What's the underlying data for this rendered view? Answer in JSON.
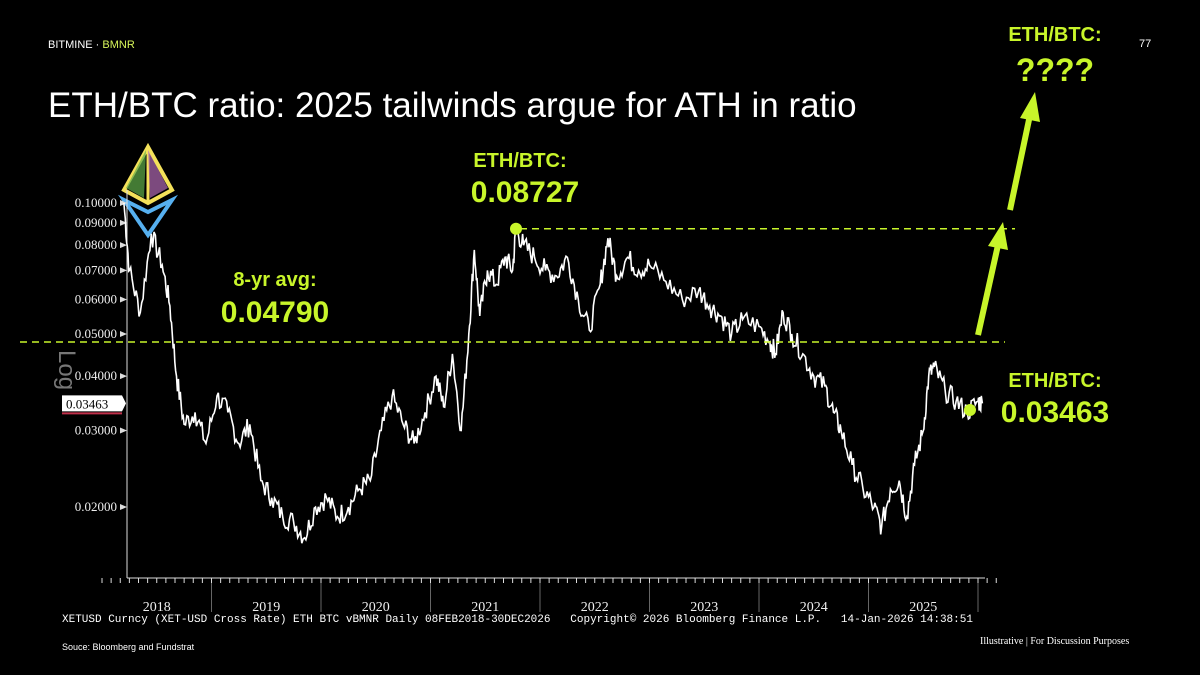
{
  "brand": {
    "name": "BITMINE",
    "ticker": "BMNR"
  },
  "page_number": "77",
  "title": "ETH/BTC ratio: 2025 tailwinds argue for ATH in ratio",
  "annotations": {
    "peak_label": "ETH/BTC:",
    "peak_value": "0.08727",
    "avg_label": "8-yr avg:",
    "avg_value": "0.04790",
    "current_label": "ETH/BTC:",
    "current_value": "0.03463",
    "future_label": "ETH/BTC:",
    "future_value": "????"
  },
  "axis_scale_label": "Log",
  "footer": {
    "bloomberg": "XETUSD Curncy (XET-USD Cross Rate) ETH BTC vBMNR Daily 08FEB2018-30DEC2026   Copyright© 2026 Bloomberg Finance L.P.   14-Jan-2026 14:38:51",
    "source": "Souce: Bloomberg and Fundstrat",
    "disclaimer": "Illustrative  |  For Discussion Purposes"
  },
  "colors": {
    "accent": "#c8f52a",
    "line": "#ffffff",
    "bg": "#000000"
  },
  "chart_data": {
    "type": "line",
    "yscale": "log",
    "ylim": [
      0.015,
      0.105
    ],
    "xlim": [
      2018.0,
      2026.2
    ],
    "yticks": [
      0.1,
      0.09,
      0.08,
      0.07,
      0.06,
      0.05,
      0.04,
      0.03,
      0.02
    ],
    "ytick_labels": [
      "0.10000",
      "0.09000",
      "0.08000",
      "0.07000",
      "0.06000",
      "0.05000",
      "0.04000",
      "0.03000",
      "0.02000"
    ],
    "xtick_labels": [
      "2018",
      "2019",
      "2020",
      "2021",
      "2022",
      "2023",
      "2024",
      "2025"
    ],
    "last_value": 0.03463,
    "last_value_label": "0.03463",
    "avg": 0.0479,
    "peak": 0.08727,
    "series": [
      {
        "name": "ETH/BTC",
        "x": [
          2018.2,
          2018.25,
          2018.35,
          2018.45,
          2018.55,
          2018.62,
          2018.68,
          2018.75,
          2018.85,
          2018.95,
          2019.05,
          2019.15,
          2019.25,
          2019.35,
          2019.45,
          2019.55,
          2019.65,
          2019.75,
          2019.85,
          2019.95,
          2020.05,
          2020.15,
          2020.25,
          2020.35,
          2020.45,
          2020.55,
          2020.65,
          2020.75,
          2020.85,
          2020.95,
          2021.05,
          2021.12,
          2021.2,
          2021.28,
          2021.35,
          2021.4,
          2021.45,
          2021.52,
          2021.6,
          2021.68,
          2021.75,
          2021.78,
          2021.85,
          2021.95,
          2022.05,
          2022.15,
          2022.25,
          2022.35,
          2022.45,
          2022.55,
          2022.62,
          2022.7,
          2022.8,
          2022.9,
          2023.0,
          2023.15,
          2023.3,
          2023.45,
          2023.55,
          2023.65,
          2023.75,
          2023.85,
          2024.0,
          2024.1,
          2024.15,
          2024.22,
          2024.3,
          2024.4,
          2024.5,
          2024.6,
          2024.68,
          2024.75,
          2024.85,
          2024.95,
          2025.05,
          2025.12,
          2025.2,
          2025.28,
          2025.35,
          2025.42,
          2025.5,
          2025.55,
          2025.6,
          2025.7,
          2025.8,
          2025.9,
          2026.0,
          2026.04
        ],
        "y": [
          0.1,
          0.07,
          0.056,
          0.085,
          0.072,
          0.058,
          0.04,
          0.031,
          0.033,
          0.028,
          0.036,
          0.033,
          0.028,
          0.031,
          0.023,
          0.021,
          0.019,
          0.0185,
          0.017,
          0.02,
          0.021,
          0.019,
          0.02,
          0.022,
          0.023,
          0.03,
          0.036,
          0.031,
          0.028,
          0.033,
          0.04,
          0.034,
          0.045,
          0.03,
          0.05,
          0.078,
          0.055,
          0.07,
          0.065,
          0.075,
          0.07,
          0.087,
          0.08,
          0.075,
          0.07,
          0.068,
          0.075,
          0.06,
          0.051,
          0.065,
          0.083,
          0.068,
          0.075,
          0.07,
          0.072,
          0.066,
          0.06,
          0.063,
          0.058,
          0.055,
          0.05,
          0.054,
          0.052,
          0.048,
          0.045,
          0.056,
          0.05,
          0.045,
          0.04,
          0.038,
          0.033,
          0.03,
          0.025,
          0.022,
          0.02,
          0.018,
          0.022,
          0.023,
          0.019,
          0.025,
          0.03,
          0.04,
          0.042,
          0.037,
          0.035,
          0.033,
          0.035,
          0.03463
        ]
      }
    ]
  }
}
